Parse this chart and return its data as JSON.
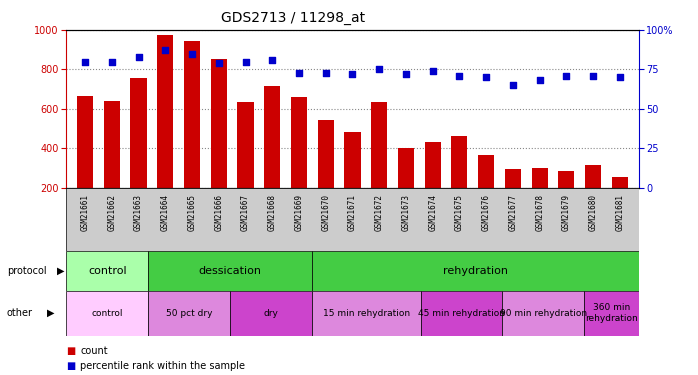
{
  "title": "GDS2713 / 11298_at",
  "samples": [
    "GSM21661",
    "GSM21662",
    "GSM21663",
    "GSM21664",
    "GSM21665",
    "GSM21666",
    "GSM21667",
    "GSM21668",
    "GSM21669",
    "GSM21670",
    "GSM21671",
    "GSM21672",
    "GSM21673",
    "GSM21674",
    "GSM21675",
    "GSM21676",
    "GSM21677",
    "GSM21678",
    "GSM21679",
    "GSM21680",
    "GSM21681"
  ],
  "counts": [
    665,
    637,
    757,
    975,
    945,
    855,
    632,
    714,
    660,
    545,
    482,
    632,
    400,
    430,
    462,
    363,
    295,
    298,
    286,
    312,
    252
  ],
  "percentiles": [
    80,
    80,
    83,
    87,
    85,
    79,
    80,
    81,
    73,
    73,
    72,
    75,
    72,
    74,
    71,
    70,
    65,
    68,
    71,
    71,
    70
  ],
  "bar_color": "#cc0000",
  "dot_color": "#0000cc",
  "ylim_left": [
    200,
    1000
  ],
  "ylim_right": [
    0,
    100
  ],
  "yticks_left": [
    200,
    400,
    600,
    800,
    1000
  ],
  "yticks_right": [
    0,
    25,
    50,
    75,
    100
  ],
  "proto_regions": [
    [
      0,
      3,
      "control",
      "#aaffaa"
    ],
    [
      3,
      9,
      "dessication",
      "#44cc44"
    ],
    [
      9,
      21,
      "rehydration",
      "#44cc44"
    ]
  ],
  "other_regions": [
    [
      0,
      3,
      "control",
      "#ffccff"
    ],
    [
      3,
      6,
      "50 pct dry",
      "#dd88dd"
    ],
    [
      6,
      9,
      "dry",
      "#cc44cc"
    ],
    [
      9,
      13,
      "15 min rehydration",
      "#dd88dd"
    ],
    [
      13,
      16,
      "45 min rehydration",
      "#cc44cc"
    ],
    [
      16,
      19,
      "90 min rehydration",
      "#dd88dd"
    ],
    [
      19,
      21,
      "360 min\nrehydration",
      "#cc44cc"
    ]
  ],
  "grid_color": "#888888"
}
